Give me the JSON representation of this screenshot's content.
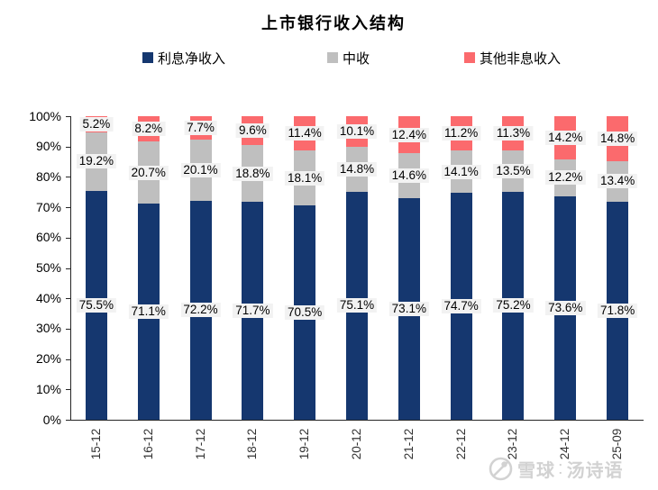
{
  "title": "上市银行收入结构",
  "watermark": {
    "site": "雪球",
    "separator": ":",
    "user": "汤诗语"
  },
  "chart_data": {
    "type": "bar",
    "subtype": "stacked-percent",
    "title": "上市银行收入结构",
    "categories": [
      "15-12",
      "16-12",
      "17-12",
      "18-12",
      "19-12",
      "20-12",
      "21-12",
      "22-12",
      "23-12",
      "24-12",
      "25-09"
    ],
    "series": [
      {
        "name": "利息净收入",
        "color": "#15376f",
        "values": [
          75.5,
          71.1,
          72.2,
          71.7,
          70.5,
          75.1,
          73.1,
          74.7,
          75.2,
          73.6,
          71.8
        ]
      },
      {
        "name": "中收",
        "color": "#bfbfbf",
        "values": [
          19.2,
          20.7,
          20.1,
          18.8,
          18.1,
          14.8,
          14.6,
          14.1,
          13.5,
          12.2,
          13.4
        ]
      },
      {
        "name": "其他非息收入",
        "color": "#fb6a6d",
        "values": [
          5.2,
          8.2,
          7.7,
          9.6,
          11.4,
          10.1,
          12.4,
          11.2,
          11.3,
          14.2,
          14.8
        ]
      }
    ],
    "y_ticks": [
      "0%",
      "10%",
      "20%",
      "30%",
      "40%",
      "50%",
      "60%",
      "70%",
      "80%",
      "90%",
      "100%"
    ],
    "ylim": [
      0,
      100
    ],
    "xlabel": "",
    "ylabel": "",
    "grid": false,
    "legend_position": "top",
    "data_labels": true
  }
}
